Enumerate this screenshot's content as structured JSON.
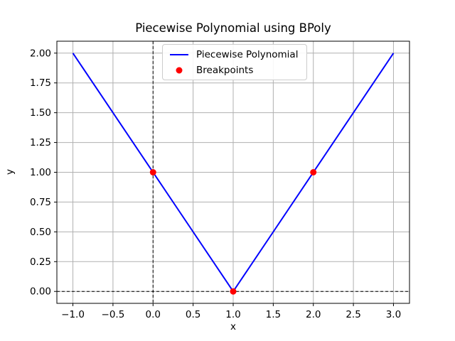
{
  "figure": {
    "background": "#ffffff"
  },
  "chart_data": {
    "type": "line",
    "title": "Piecewise Polynomial using BPoly",
    "xlabel": "x",
    "ylabel": "y",
    "xlim": [
      -1.2,
      3.2
    ],
    "ylim": [
      -0.1,
      2.1
    ],
    "x_ticks": [
      -1.0,
      -0.5,
      0.0,
      0.5,
      1.0,
      1.5,
      2.0,
      2.5,
      3.0
    ],
    "x_tick_labels": [
      "−1.0",
      "−0.5",
      "0.0",
      "0.5",
      "1.0",
      "1.5",
      "2.0",
      "2.5",
      "3.0"
    ],
    "y_ticks": [
      0.0,
      0.25,
      0.5,
      0.75,
      1.0,
      1.25,
      1.5,
      1.75,
      2.0
    ],
    "y_tick_labels": [
      "0.00",
      "0.25",
      "0.50",
      "0.75",
      "1.00",
      "1.25",
      "1.50",
      "1.75",
      "2.00"
    ],
    "grid": true,
    "grid_style": "solid",
    "grid_color": "#b0b0b0",
    "axes_color": "#000000",
    "zero_lines": {
      "x": 0,
      "y": 0,
      "style": "dashed",
      "color": "#000000"
    },
    "series": [
      {
        "name": "Piecewise Polynomial",
        "type": "line",
        "color": "#0000ff",
        "line_width": 2,
        "x": [
          -1,
          1,
          3
        ],
        "y": [
          2,
          0,
          2
        ]
      },
      {
        "name": "Breakpoints",
        "type": "scatter",
        "color": "#ff0000",
        "marker": "circle",
        "marker_radius": 4.5,
        "x": [
          0,
          1,
          2
        ],
        "y": [
          1,
          0,
          1
        ]
      }
    ],
    "legend": {
      "position": "upper center",
      "entries": [
        {
          "label": "Piecewise Polynomial",
          "marker": "line",
          "color": "#0000ff"
        },
        {
          "label": "Breakpoints",
          "marker": "dot",
          "color": "#ff0000"
        }
      ]
    }
  }
}
